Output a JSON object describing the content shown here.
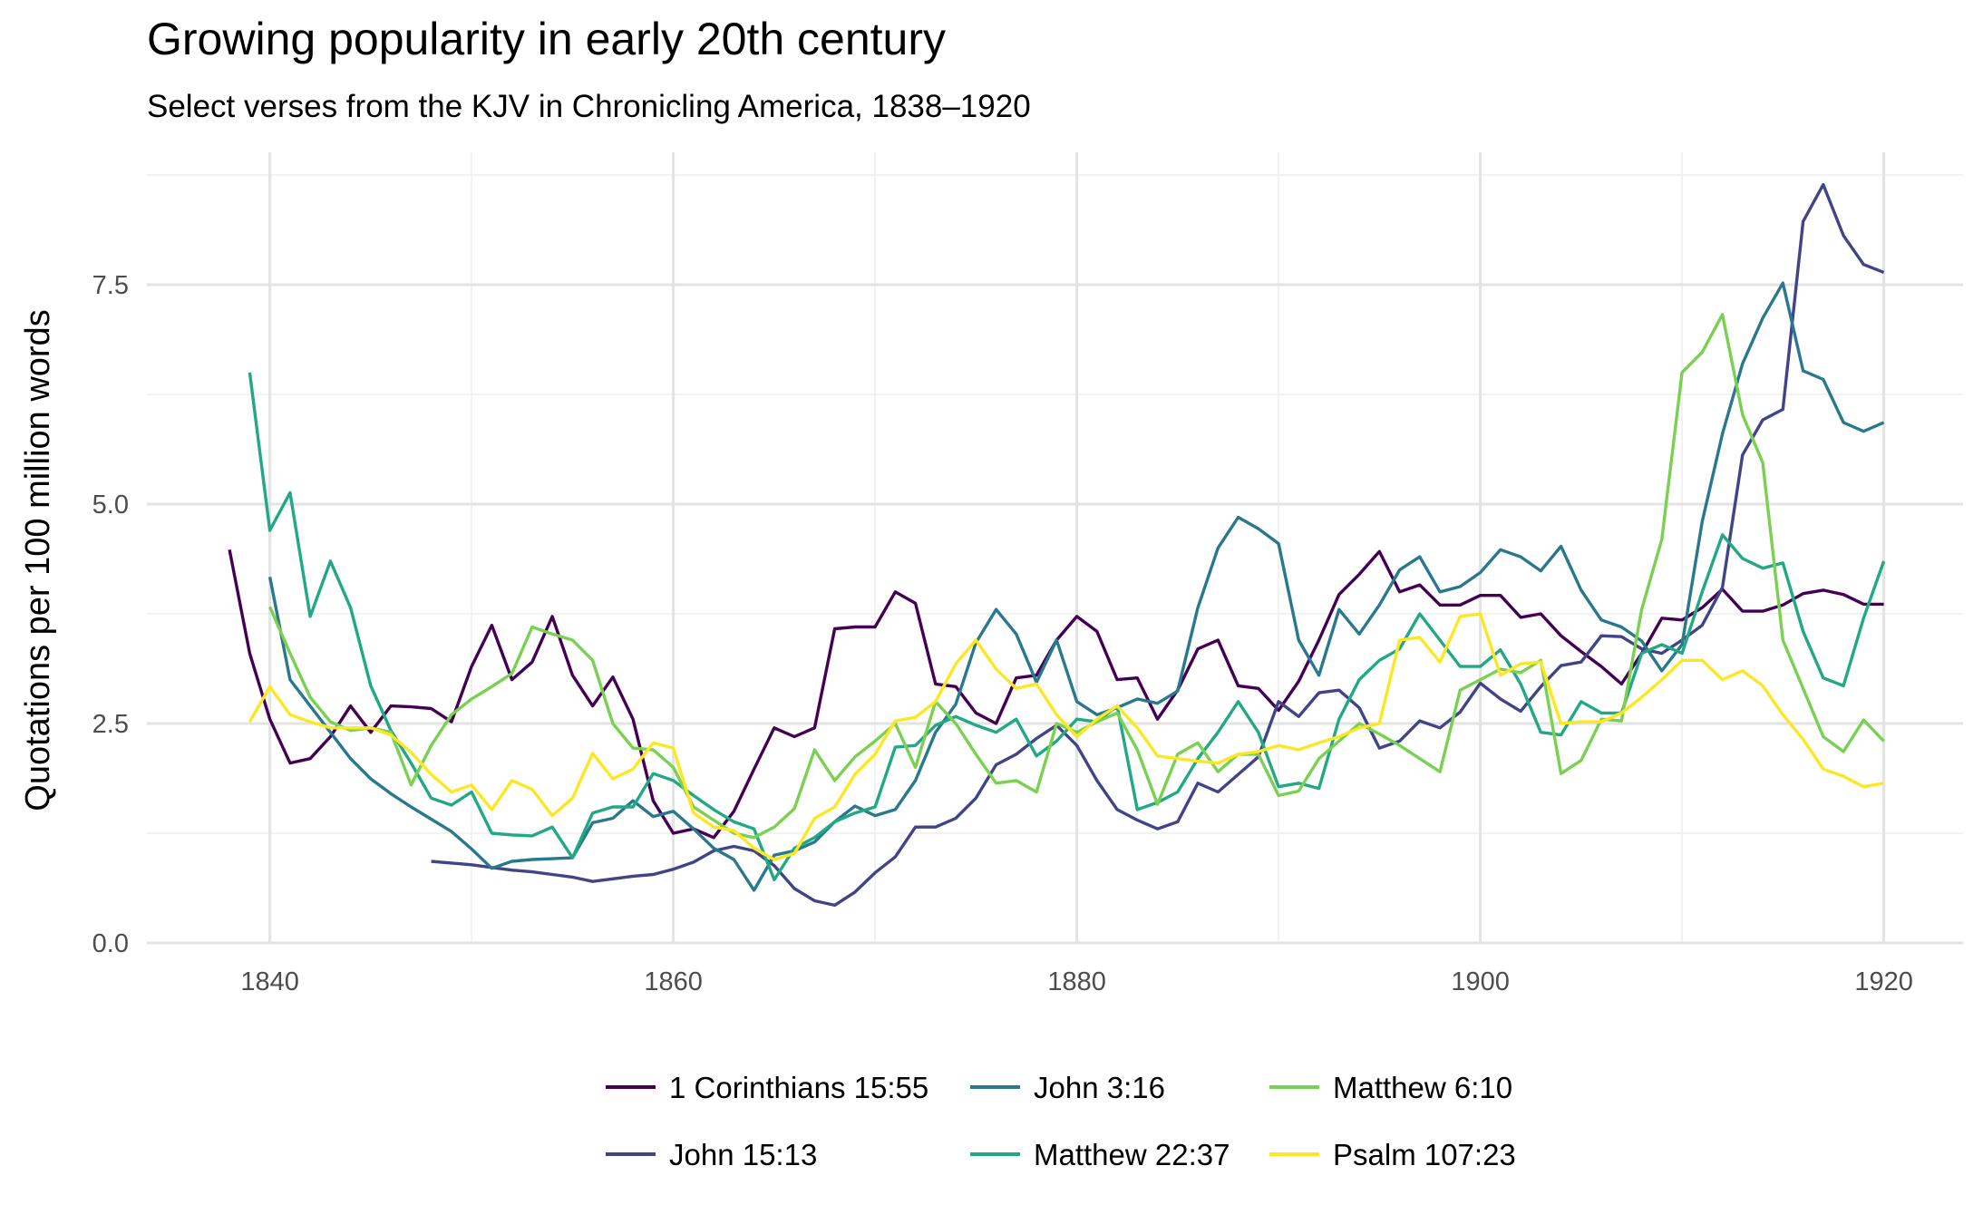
{
  "chart_data": {
    "type": "line",
    "title": "Growing popularity in early 20th century",
    "subtitle": "Select verses from the KJV in Chronicling America, 1838–1920",
    "xlabel": "",
    "ylabel": "Quotations per 100 million words",
    "xlim": [
      1834,
      1923
    ],
    "ylim": [
      0,
      8.85
    ],
    "x_ticks": [
      1840,
      1860,
      1880,
      1900,
      1920
    ],
    "x_tick_labels": [
      "1840",
      "1860",
      "1880",
      "1900",
      "1920"
    ],
    "y_ticks": [
      0,
      2.5,
      5,
      7.5
    ],
    "y_tick_labels": [
      "0.0",
      "2.5",
      "5.0",
      "7.5"
    ],
    "grid": true,
    "legend_position": "bottom",
    "series": [
      {
        "name": "1 Corinthians 15:55",
        "color": "#440154",
        "x": [
          1838,
          1839,
          1840,
          1841,
          1842,
          1843,
          1844,
          1845,
          1846,
          1847,
          1848,
          1849,
          1850,
          1851,
          1852,
          1853,
          1854,
          1855,
          1856,
          1857,
          1858,
          1859,
          1860,
          1861,
          1862,
          1863,
          1864,
          1865,
          1866,
          1867,
          1868,
          1869,
          1870,
          1871,
          1872,
          1873,
          1874,
          1875,
          1876,
          1877,
          1878,
          1879,
          1880,
          1881,
          1882,
          1883,
          1884,
          1885,
          1886,
          1887,
          1888,
          1889,
          1890,
          1891,
          1892,
          1893,
          1894,
          1895,
          1896,
          1897,
          1898,
          1899,
          1900,
          1901,
          1902,
          1903,
          1904,
          1905,
          1906,
          1907,
          1908,
          1909,
          1910,
          1911,
          1912,
          1913,
          1914,
          1915,
          1916,
          1917,
          1918,
          1919,
          1920
        ],
        "y": [
          4.48,
          3.3,
          2.55,
          2.05,
          2.1,
          2.35,
          2.7,
          2.4,
          2.7,
          2.69,
          2.67,
          2.52,
          3.15,
          3.62,
          3.0,
          3.2,
          3.72,
          3.05,
          2.7,
          3.03,
          2.55,
          1.62,
          1.25,
          1.3,
          1.2,
          1.5,
          1.98,
          2.45,
          2.35,
          2.45,
          3.58,
          3.6,
          3.6,
          4.0,
          3.87,
          2.95,
          2.92,
          2.62,
          2.5,
          3.02,
          3.05,
          3.45,
          3.72,
          3.55,
          3.0,
          3.02,
          2.55,
          2.88,
          3.35,
          3.45,
          2.93,
          2.9,
          2.65,
          2.98,
          3.45,
          3.97,
          4.2,
          4.46,
          4.0,
          4.08,
          3.85,
          3.85,
          3.96,
          3.96,
          3.71,
          3.75,
          3.5,
          3.32,
          3.15,
          2.95,
          3.3,
          3.7,
          3.68,
          3.82,
          4.03,
          3.78,
          3.78,
          3.85,
          3.98,
          4.02,
          3.97,
          3.86,
          3.86
        ]
      },
      {
        "name": "John 15:13",
        "color": "#414487",
        "x": [
          1848,
          1849,
          1850,
          1851,
          1852,
          1853,
          1854,
          1855,
          1856,
          1857,
          1858,
          1859,
          1860,
          1861,
          1862,
          1863,
          1864,
          1865,
          1866,
          1867,
          1868,
          1869,
          1870,
          1871,
          1872,
          1873,
          1874,
          1875,
          1876,
          1877,
          1878,
          1879,
          1880,
          1881,
          1882,
          1883,
          1884,
          1885,
          1886,
          1887,
          1888,
          1889,
          1890,
          1891,
          1892,
          1893,
          1894,
          1895,
          1896,
          1897,
          1898,
          1899,
          1900,
          1901,
          1902,
          1903,
          1904,
          1905,
          1906,
          1907,
          1908,
          1909,
          1910,
          1911,
          1912,
          1913,
          1914,
          1915,
          1916,
          1917,
          1918,
          1919,
          1920
        ],
        "y": [
          0.93,
          0.91,
          0.89,
          0.86,
          0.83,
          0.81,
          0.78,
          0.75,
          0.7,
          0.73,
          0.76,
          0.78,
          0.84,
          0.92,
          1.05,
          1.1,
          1.05,
          0.88,
          0.62,
          0.48,
          0.43,
          0.58,
          0.8,
          0.98,
          1.32,
          1.32,
          1.42,
          1.65,
          2.03,
          2.15,
          2.33,
          2.48,
          2.25,
          1.85,
          1.52,
          1.4,
          1.3,
          1.38,
          1.82,
          1.72,
          1.92,
          2.12,
          2.75,
          2.58,
          2.85,
          2.88,
          2.68,
          2.22,
          2.3,
          2.53,
          2.45,
          2.63,
          2.96,
          2.78,
          2.64,
          2.92,
          3.16,
          3.2,
          3.5,
          3.49,
          3.35,
          3.3,
          3.45,
          3.62,
          4.05,
          5.56,
          5.96,
          6.08,
          8.22,
          8.64,
          8.06,
          7.73,
          7.64
        ]
      },
      {
        "name": "John 3:16",
        "color": "#2A788E",
        "x": [
          1840,
          1841,
          1842,
          1843,
          1844,
          1845,
          1846,
          1847,
          1848,
          1849,
          1850,
          1851,
          1852,
          1853,
          1854,
          1855,
          1856,
          1857,
          1858,
          1859,
          1860,
          1861,
          1862,
          1863,
          1864,
          1865,
          1866,
          1867,
          1868,
          1869,
          1870,
          1871,
          1872,
          1873,
          1874,
          1875,
          1876,
          1877,
          1878,
          1879,
          1880,
          1881,
          1882,
          1883,
          1884,
          1885,
          1886,
          1887,
          1888,
          1889,
          1890,
          1891,
          1892,
          1893,
          1894,
          1895,
          1896,
          1897,
          1898,
          1899,
          1900,
          1901,
          1902,
          1903,
          1904,
          1905,
          1906,
          1907,
          1908,
          1909,
          1910,
          1911,
          1912,
          1913,
          1914,
          1915,
          1916,
          1917,
          1918,
          1919,
          1920
        ],
        "y": [
          4.17,
          3.0,
          2.7,
          2.4,
          2.1,
          1.87,
          1.7,
          1.55,
          1.41,
          1.27,
          1.07,
          0.85,
          0.93,
          0.95,
          0.96,
          0.97,
          1.37,
          1.42,
          1.62,
          1.44,
          1.5,
          1.3,
          1.08,
          0.95,
          0.6,
          1.0,
          1.05,
          1.15,
          1.38,
          1.56,
          1.45,
          1.52,
          1.85,
          2.4,
          2.72,
          3.42,
          3.8,
          3.52,
          2.97,
          3.45,
          2.75,
          2.6,
          2.68,
          2.78,
          2.73,
          2.87,
          3.82,
          4.5,
          4.85,
          4.72,
          4.55,
          3.45,
          3.05,
          3.8,
          3.52,
          3.85,
          4.25,
          4.4,
          4.0,
          4.06,
          4.22,
          4.48,
          4.4,
          4.24,
          4.52,
          4.02,
          3.68,
          3.6,
          3.44,
          3.1,
          3.4,
          4.8,
          5.8,
          6.6,
          7.12,
          7.52,
          6.52,
          6.42,
          5.93,
          5.83,
          5.93
        ]
      },
      {
        "name": "Matthew 22:37",
        "color": "#22A884",
        "x": [
          1839,
          1840,
          1841,
          1842,
          1843,
          1844,
          1845,
          1846,
          1847,
          1848,
          1849,
          1850,
          1851,
          1852,
          1853,
          1854,
          1855,
          1856,
          1857,
          1858,
          1859,
          1860,
          1861,
          1862,
          1863,
          1864,
          1865,
          1866,
          1867,
          1868,
          1869,
          1870,
          1871,
          1872,
          1873,
          1874,
          1875,
          1876,
          1877,
          1878,
          1879,
          1880,
          1881,
          1882,
          1883,
          1884,
          1885,
          1886,
          1887,
          1888,
          1889,
          1890,
          1891,
          1892,
          1893,
          1894,
          1895,
          1896,
          1897,
          1898,
          1899,
          1900,
          1901,
          1902,
          1903,
          1904,
          1905,
          1906,
          1907,
          1908,
          1909,
          1910,
          1911,
          1912,
          1913,
          1914,
          1915,
          1916,
          1917,
          1918,
          1919,
          1920
        ],
        "y": [
          6.5,
          4.7,
          5.13,
          3.72,
          4.35,
          3.82,
          2.93,
          2.42,
          2.05,
          1.65,
          1.57,
          1.72,
          1.25,
          1.23,
          1.22,
          1.32,
          0.97,
          1.48,
          1.55,
          1.55,
          1.93,
          1.85,
          1.68,
          1.52,
          1.38,
          1.3,
          0.72,
          1.08,
          1.2,
          1.38,
          1.48,
          1.55,
          2.23,
          2.25,
          2.48,
          2.58,
          2.48,
          2.4,
          2.55,
          2.13,
          2.3,
          2.55,
          2.52,
          2.7,
          1.52,
          1.6,
          1.72,
          2.1,
          2.4,
          2.75,
          2.4,
          1.78,
          1.82,
          1.76,
          2.55,
          3.0,
          3.22,
          3.35,
          3.75,
          3.45,
          3.15,
          3.15,
          3.34,
          2.95,
          2.4,
          2.37,
          2.75,
          2.62,
          2.62,
          3.3,
          3.4,
          3.3,
          4.0,
          4.65,
          4.38,
          4.27,
          4.33,
          3.55,
          3.02,
          2.93,
          3.7,
          4.35
        ]
      },
      {
        "name": "Matthew 6:10",
        "color": "#7AD151",
        "x": [
          1840,
          1841,
          1842,
          1843,
          1844,
          1845,
          1846,
          1847,
          1848,
          1849,
          1850,
          1851,
          1852,
          1853,
          1854,
          1855,
          1856,
          1857,
          1858,
          1859,
          1860,
          1861,
          1862,
          1863,
          1864,
          1865,
          1866,
          1867,
          1868,
          1869,
          1870,
          1871,
          1872,
          1873,
          1874,
          1875,
          1876,
          1877,
          1878,
          1879,
          1880,
          1881,
          1882,
          1883,
          1884,
          1885,
          1886,
          1887,
          1888,
          1889,
          1890,
          1891,
          1892,
          1893,
          1894,
          1895,
          1896,
          1897,
          1898,
          1899,
          1900,
          1901,
          1902,
          1903,
          1904,
          1905,
          1906,
          1907,
          1908,
          1909,
          1910,
          1911,
          1912,
          1913,
          1914,
          1915,
          1916,
          1917,
          1918,
          1919,
          1920
        ],
        "y": [
          3.83,
          3.3,
          2.8,
          2.52,
          2.42,
          2.45,
          2.4,
          1.8,
          2.25,
          2.6,
          2.78,
          2.92,
          3.07,
          3.6,
          3.52,
          3.45,
          3.22,
          2.5,
          2.22,
          2.2,
          2.0,
          1.55,
          1.4,
          1.25,
          1.2,
          1.32,
          1.53,
          2.2,
          1.85,
          2.12,
          2.3,
          2.5,
          2.0,
          2.75,
          2.5,
          2.15,
          1.82,
          1.85,
          1.72,
          2.5,
          2.4,
          2.52,
          2.62,
          2.2,
          1.58,
          2.15,
          2.28,
          1.95,
          2.15,
          2.15,
          1.68,
          1.73,
          2.1,
          2.3,
          2.5,
          2.38,
          2.25,
          2.1,
          1.95,
          2.88,
          3.0,
          3.12,
          3.08,
          3.22,
          1.93,
          2.08,
          2.55,
          2.53,
          3.8,
          4.6,
          6.5,
          6.73,
          7.16,
          6.02,
          5.47,
          3.45,
          2.9,
          2.35,
          2.18,
          2.54,
          2.3
        ]
      },
      {
        "name": "Psalm 107:23",
        "color": "#FDE725",
        "x": [
          1839,
          1840,
          1841,
          1842,
          1843,
          1844,
          1845,
          1846,
          1847,
          1848,
          1849,
          1850,
          1851,
          1852,
          1853,
          1854,
          1855,
          1856,
          1857,
          1858,
          1859,
          1860,
          1861,
          1862,
          1863,
          1864,
          1865,
          1866,
          1867,
          1868,
          1869,
          1870,
          1871,
          1872,
          1873,
          1874,
          1875,
          1876,
          1877,
          1878,
          1879,
          1880,
          1881,
          1882,
          1883,
          1884,
          1885,
          1886,
          1887,
          1888,
          1889,
          1890,
          1891,
          1892,
          1893,
          1894,
          1895,
          1896,
          1897,
          1898,
          1899,
          1900,
          1901,
          1902,
          1903,
          1904,
          1905,
          1906,
          1907,
          1908,
          1909,
          1910,
          1911,
          1912,
          1913,
          1914,
          1915,
          1916,
          1917,
          1918,
          1919,
          1920
        ],
        "y": [
          2.52,
          2.92,
          2.6,
          2.52,
          2.45,
          2.45,
          2.45,
          2.37,
          2.17,
          1.92,
          1.72,
          1.8,
          1.52,
          1.85,
          1.75,
          1.45,
          1.65,
          2.16,
          1.87,
          1.98,
          2.28,
          2.22,
          1.48,
          1.32,
          1.28,
          1.08,
          0.95,
          1.02,
          1.42,
          1.55,
          1.92,
          2.15,
          2.53,
          2.57,
          2.75,
          3.18,
          3.45,
          3.12,
          2.9,
          2.95,
          2.6,
          2.35,
          2.55,
          2.7,
          2.45,
          2.13,
          2.1,
          2.07,
          2.05,
          2.15,
          2.18,
          2.25,
          2.2,
          2.28,
          2.35,
          2.45,
          2.5,
          3.45,
          3.48,
          3.2,
          3.72,
          3.75,
          3.05,
          3.18,
          3.2,
          2.5,
          2.52,
          2.52,
          2.62,
          2.8,
          3.0,
          3.22,
          3.22,
          3.0,
          3.1,
          2.93,
          2.6,
          2.32,
          1.98,
          1.9,
          1.78,
          1.82
        ]
      }
    ]
  }
}
